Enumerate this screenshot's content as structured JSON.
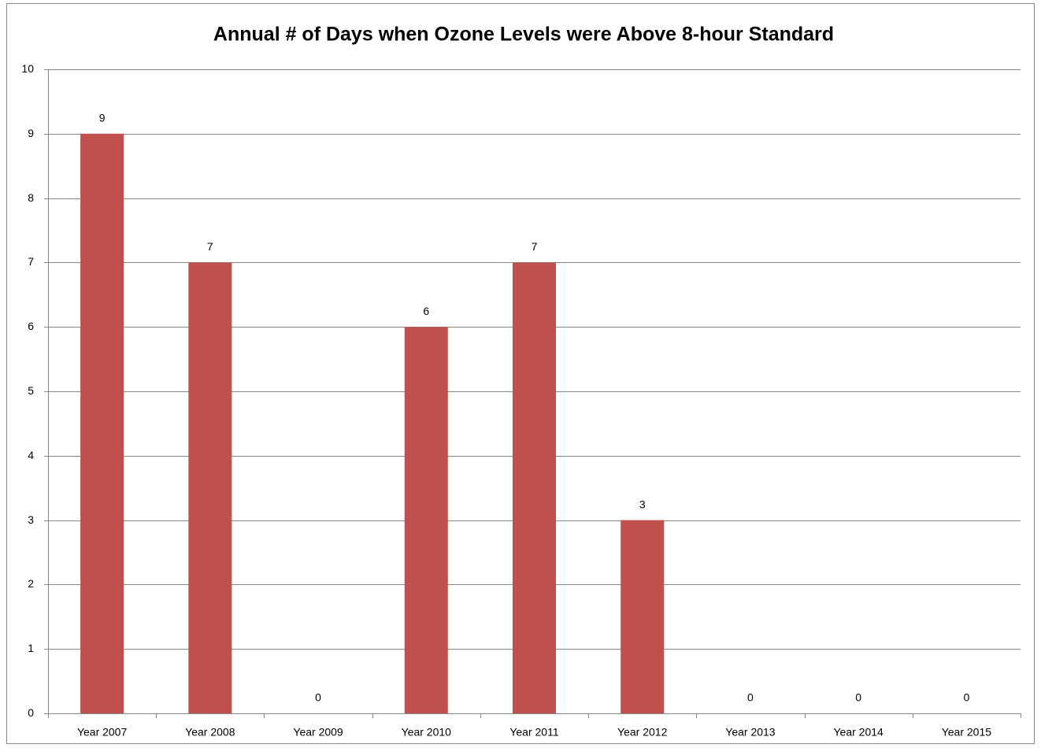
{
  "chart_data": {
    "type": "bar",
    "title": "Annual # of Days when Ozone Levels were Above 8-hour Standard",
    "categories": [
      "Year 2007",
      "Year 2008",
      "Year 2009",
      "Year 2010",
      "Year 2011",
      "Year 2012",
      "Year 2013",
      "Year 2014",
      "Year 2015"
    ],
    "values": [
      9,
      7,
      0,
      6,
      7,
      3,
      0,
      0,
      0
    ],
    "color": "#c0504d",
    "ylim": [
      0,
      10
    ],
    "yticks": [
      0,
      1,
      2,
      3,
      4,
      5,
      6,
      7,
      8,
      9,
      10
    ],
    "grid": true,
    "data_labels": true
  }
}
